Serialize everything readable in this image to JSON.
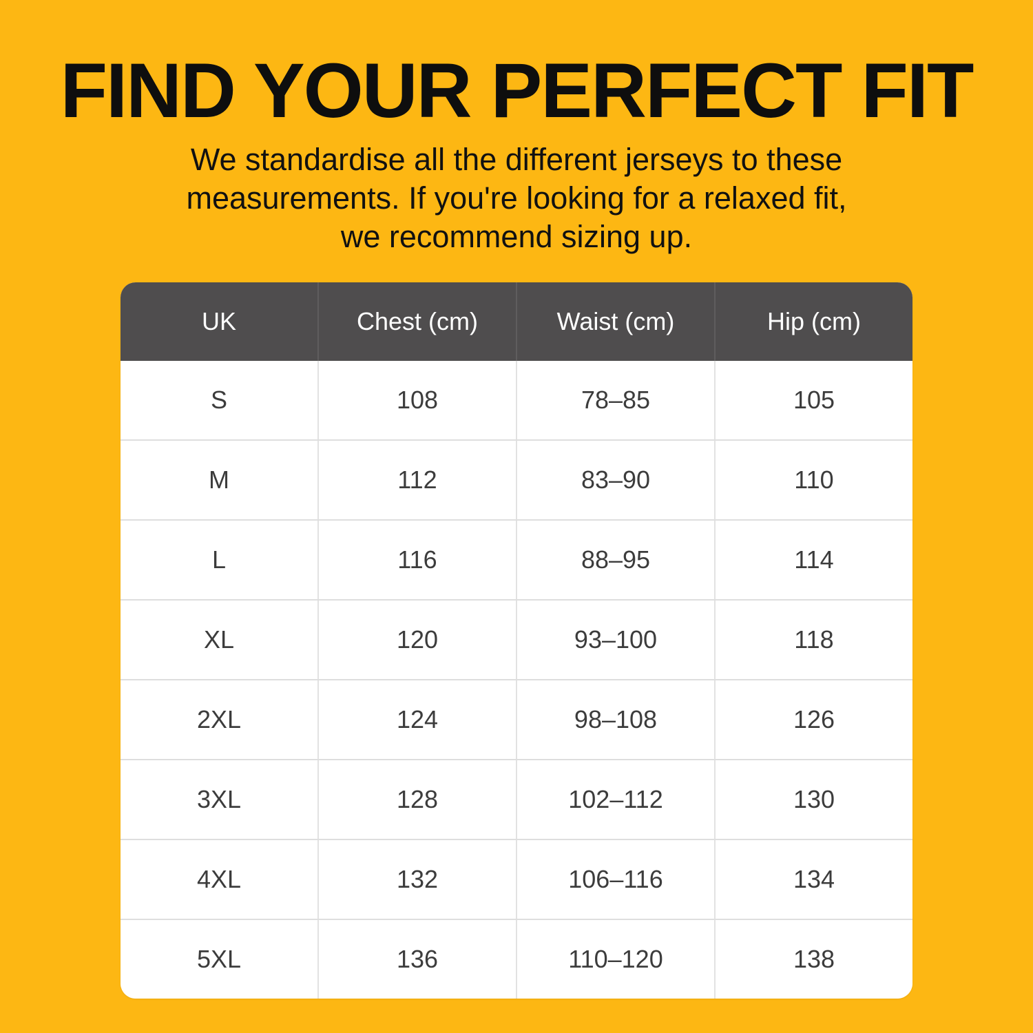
{
  "header": {
    "title": "FIND YOUR PERFECT FIT",
    "subtitle": "We standardise all the different jerseys to these\nmeasurements. If you're looking for a relaxed fit,\nwe recommend sizing up."
  },
  "chart_data": {
    "type": "table",
    "columns": [
      "UK",
      "Chest (cm)",
      "Waist (cm)",
      "Hip (cm)"
    ],
    "rows": [
      [
        "S",
        "108",
        "78–85",
        "105"
      ],
      [
        "M",
        "112",
        "83–90",
        "110"
      ],
      [
        "L",
        "116",
        "88–95",
        "114"
      ],
      [
        "XL",
        "120",
        "93–100",
        "118"
      ],
      [
        "2XL",
        "124",
        "98–108",
        "126"
      ],
      [
        "3XL",
        "128",
        "102–112",
        "130"
      ],
      [
        "4XL",
        "132",
        "106–116",
        "134"
      ],
      [
        "5XL",
        "136",
        "110–120",
        "138"
      ]
    ]
  },
  "colors": {
    "background": "#FDB713",
    "title_text": "#0E0E0E",
    "table_header_bg": "#4F4D4E",
    "table_header_text": "#FFFFFF",
    "table_body_bg": "#FFFFFF",
    "table_body_text": "#3C3C3C",
    "divider": "#DEDEDE"
  }
}
